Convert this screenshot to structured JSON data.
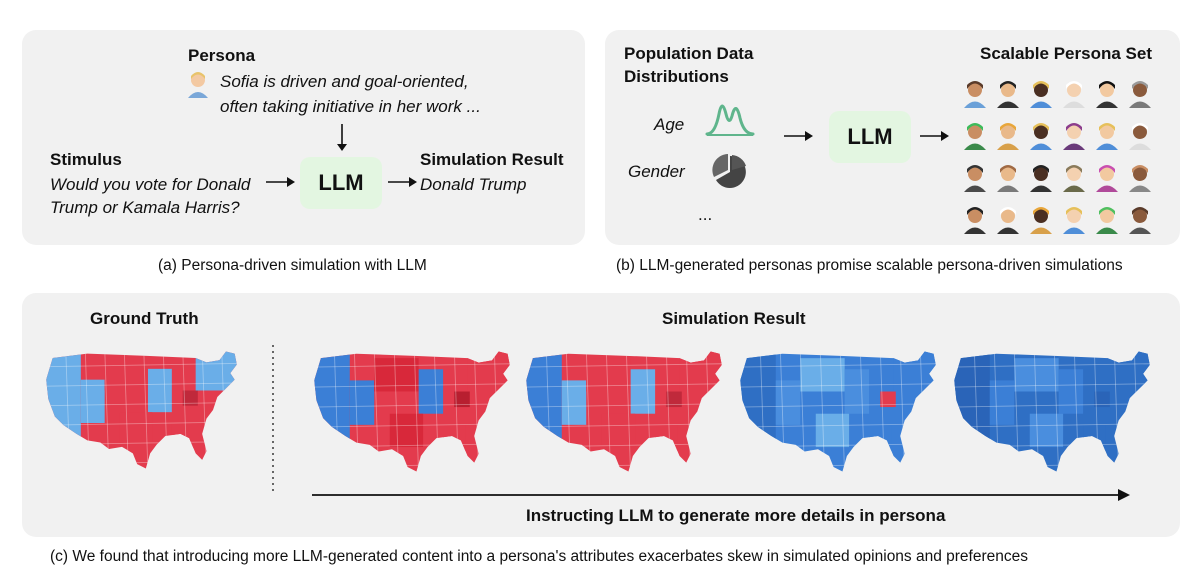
{
  "panel_a": {
    "persona_title": "Persona",
    "persona_text_line1": "Sofia is driven and goal-oriented,",
    "persona_text_line2": "often taking initiative in her work ...",
    "stimulus_title": "Stimulus",
    "stimulus_line1": "Would you vote for Donald",
    "stimulus_line2": "Trump or Kamala Harris?",
    "llm_label": "LLM",
    "result_title": "Simulation Result",
    "result_text": "Donald Trump",
    "caption": "(a) Persona-driven simulation with LLM"
  },
  "panel_b": {
    "dist_title_line1": "Population Data",
    "dist_title_line2": "Distributions",
    "age_label": "Age",
    "gender_label": "Gender",
    "ellipsis": "...",
    "llm_label": "LLM",
    "set_title": "Scalable Persona Set",
    "caption": "(b) LLM-generated personas promise scalable persona-driven simulations"
  },
  "panel_c": {
    "ground_truth_label": "Ground Truth",
    "simulation_label": "Simulation Result",
    "axis_label": "Instructing LLM to generate more details in persona",
    "caption": "(c) We found that introducing more LLM-generated content into a persona's attributes exacerbates skew in simulated opinions and preferences"
  },
  "colors": {
    "red": "#e33b4d",
    "blue": "#3b7fd6",
    "light_blue": "#6aaee8",
    "llm_green": "#e3f6e1",
    "panel_gray": "#f1f1f1"
  },
  "icons": [
    "persona-emoji-icon",
    "age-distribution-icon",
    "gender-pie-icon",
    "persona-avatar-icon",
    "us-map-icon"
  ]
}
